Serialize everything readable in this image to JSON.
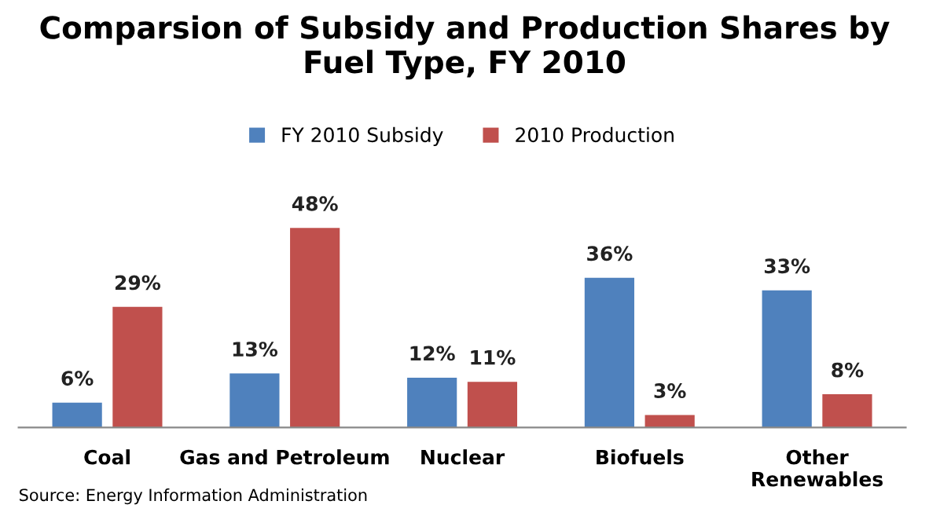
{
  "chart_data": {
    "type": "bar",
    "title": "Comparsion of Subsidy and Production Shares by Fuel Type, FY 2010",
    "categories": [
      "Coal",
      "Gas and Petroleum",
      "Nuclear",
      "Biofuels",
      "Other\nRenewables"
    ],
    "series": [
      {
        "name": "FY 2010 Subsidy",
        "color": "#4f81bd",
        "values": [
          6,
          13,
          12,
          36,
          33
        ],
        "value_labels": [
          "6%",
          "13%",
          "12%",
          "36%",
          "33%"
        ]
      },
      {
        "name": "2010 Production",
        "color": "#c0504d",
        "values": [
          29,
          48,
          11,
          3,
          8
        ],
        "value_labels": [
          "29%",
          "48%",
          "11%",
          "3%",
          "8%"
        ]
      }
    ],
    "legend": "top",
    "grid": false,
    "annotations": [
      "Source: Energy Information Administration"
    ]
  }
}
